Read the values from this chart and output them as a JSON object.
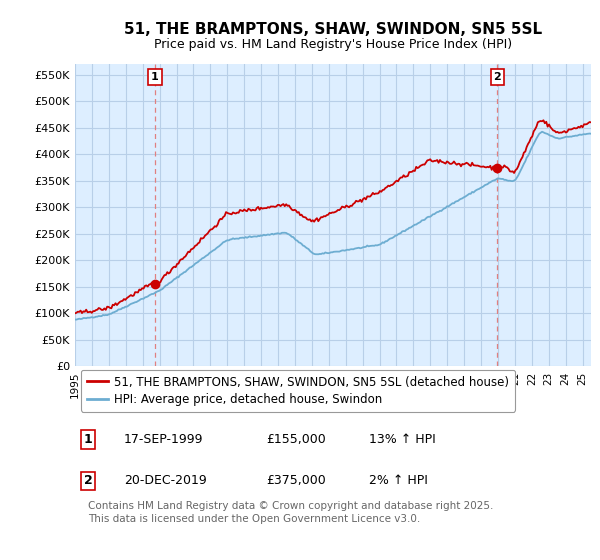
{
  "title": "51, THE BRAMPTONS, SHAW, SWINDON, SN5 5SL",
  "subtitle": "Price paid vs. HM Land Registry's House Price Index (HPI)",
  "ylabel_ticks": [
    "£0",
    "£50K",
    "£100K",
    "£150K",
    "£200K",
    "£250K",
    "£300K",
    "£350K",
    "£400K",
    "£450K",
    "£500K",
    "£550K"
  ],
  "ytick_vals": [
    0,
    50000,
    100000,
    150000,
    200000,
    250000,
    300000,
    350000,
    400000,
    450000,
    500000,
    550000
  ],
  "ylim": [
    0,
    570000
  ],
  "xlim_start": 1995.0,
  "xlim_end": 2025.5,
  "sale1_x": 1999.72,
  "sale1_y": 155000,
  "sale1_label": "1",
  "sale2_x": 2019.97,
  "sale2_y": 375000,
  "sale2_label": "2",
  "sale1_date": "17-SEP-1999",
  "sale1_price": "£155,000",
  "sale1_hpi": "13% ↑ HPI",
  "sale2_date": "20-DEC-2019",
  "sale2_price": "£375,000",
  "sale2_hpi": "2% ↑ HPI",
  "legend_line1": "51, THE BRAMPTONS, SHAW, SWINDON, SN5 5SL (detached house)",
  "legend_line2": "HPI: Average price, detached house, Swindon",
  "footer": "Contains HM Land Registry data © Crown copyright and database right 2025.\nThis data is licensed under the Open Government Licence v3.0.",
  "line_color_red": "#cc0000",
  "line_color_blue": "#6dadd1",
  "vline_color": "#e08080",
  "chart_bg": "#ddeeff",
  "bg_color": "#ffffff",
  "grid_color": "#b8cfe8",
  "title_fontsize": 11,
  "subtitle_fontsize": 9,
  "tick_fontsize": 8,
  "legend_fontsize": 8.5,
  "footer_fontsize": 7.5
}
